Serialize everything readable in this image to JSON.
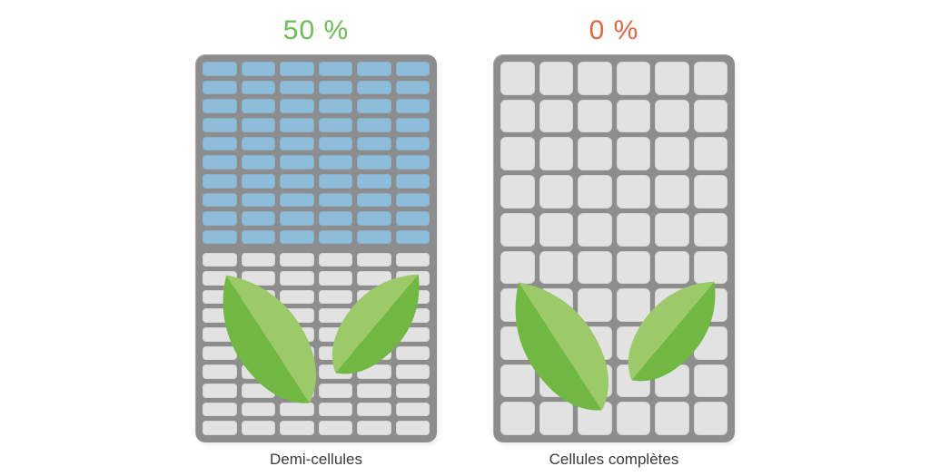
{
  "colors": {
    "background": "#ffffff",
    "frame": "#8d8d8d",
    "cell_blue": "#8ebcdb",
    "cell_gray": "#e2e2e2",
    "green_text": "#69bf53",
    "orange_text": "#e8643e",
    "caption_text": "#3a3a3a",
    "leaf_light": "#9cca69",
    "leaf_dark": "#71b843"
  },
  "panels": [
    {
      "id": "half-cells",
      "percentage": "50 %",
      "percentage_color": "#69bf53",
      "caption": "Demi-cellules",
      "cell_shape": "half",
      "columns": 6,
      "sections": [
        {
          "name": "half-cell-active",
          "state": "producing",
          "columns": 6,
          "rows": 10,
          "shape": "half",
          "cell_color": "#8ebcdb"
        },
        {
          "name": "half-cell-shaded",
          "state": "shaded",
          "columns": 6,
          "rows": 10,
          "shape": "half",
          "cell_color": "#e2e2e2"
        }
      ]
    },
    {
      "id": "full-cells",
      "percentage": "0 %",
      "percentage_color": "#e8643e",
      "caption": "Cellules complètes",
      "cell_shape": "full",
      "columns": 6,
      "sections": [
        {
          "name": "full-cell-shaded",
          "state": "shaded",
          "columns": 6,
          "rows": 10,
          "shape": "full",
          "cell_color": "#e2e2e2"
        }
      ]
    }
  ]
}
